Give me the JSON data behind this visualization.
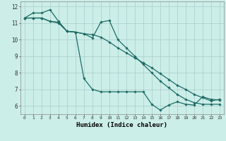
{
  "xlabel": "Humidex (Indice chaleur)",
  "background_color": "#cceee8",
  "grid_color": "#aacccc",
  "line_color": "#1e6b65",
  "xlim": [
    -0.5,
    23.5
  ],
  "ylim": [
    5.5,
    12.3
  ],
  "yticks": [
    6,
    7,
    8,
    9,
    10,
    11,
    12
  ],
  "xticks": [
    0,
    1,
    2,
    3,
    4,
    5,
    6,
    7,
    8,
    9,
    10,
    11,
    12,
    13,
    14,
    15,
    16,
    17,
    18,
    19,
    20,
    21,
    22,
    23
  ],
  "line1_x": [
    0,
    1,
    2,
    3,
    4,
    5,
    6,
    7,
    8,
    9,
    10,
    11,
    12,
    13,
    14,
    15,
    16,
    17,
    18,
    19,
    20,
    21,
    22,
    23
  ],
  "line1_y": [
    11.3,
    11.6,
    11.6,
    11.8,
    11.1,
    10.5,
    10.45,
    10.35,
    10.3,
    10.15,
    9.85,
    9.5,
    9.2,
    8.9,
    8.6,
    8.3,
    7.95,
    7.6,
    7.25,
    7.0,
    6.7,
    6.5,
    6.3,
    6.4
  ],
  "line2_x": [
    0,
    1,
    2,
    3,
    4,
    5,
    6,
    7,
    8,
    9,
    10,
    11,
    12,
    13,
    14,
    15,
    16,
    17,
    18,
    19,
    20,
    21,
    22,
    23
  ],
  "line2_y": [
    11.3,
    11.3,
    11.3,
    11.1,
    11.05,
    10.5,
    10.45,
    10.35,
    10.1,
    11.05,
    11.15,
    10.0,
    9.5,
    9.0,
    8.5,
    8.0,
    7.5,
    7.1,
    6.7,
    6.4,
    6.2,
    6.1,
    6.1,
    6.1
  ],
  "line3_x": [
    0,
    1,
    2,
    3,
    4,
    5,
    6,
    7,
    8,
    9,
    10,
    11,
    12,
    13,
    14,
    15,
    16,
    17,
    18,
    19,
    20,
    21,
    22,
    23
  ],
  "line3_y": [
    11.3,
    11.3,
    11.3,
    11.1,
    11.0,
    10.5,
    10.45,
    7.65,
    7.0,
    6.85,
    6.85,
    6.85,
    6.85,
    6.85,
    6.85,
    6.1,
    5.75,
    6.05,
    6.25,
    6.1,
    6.05,
    6.55,
    6.4,
    6.35
  ]
}
